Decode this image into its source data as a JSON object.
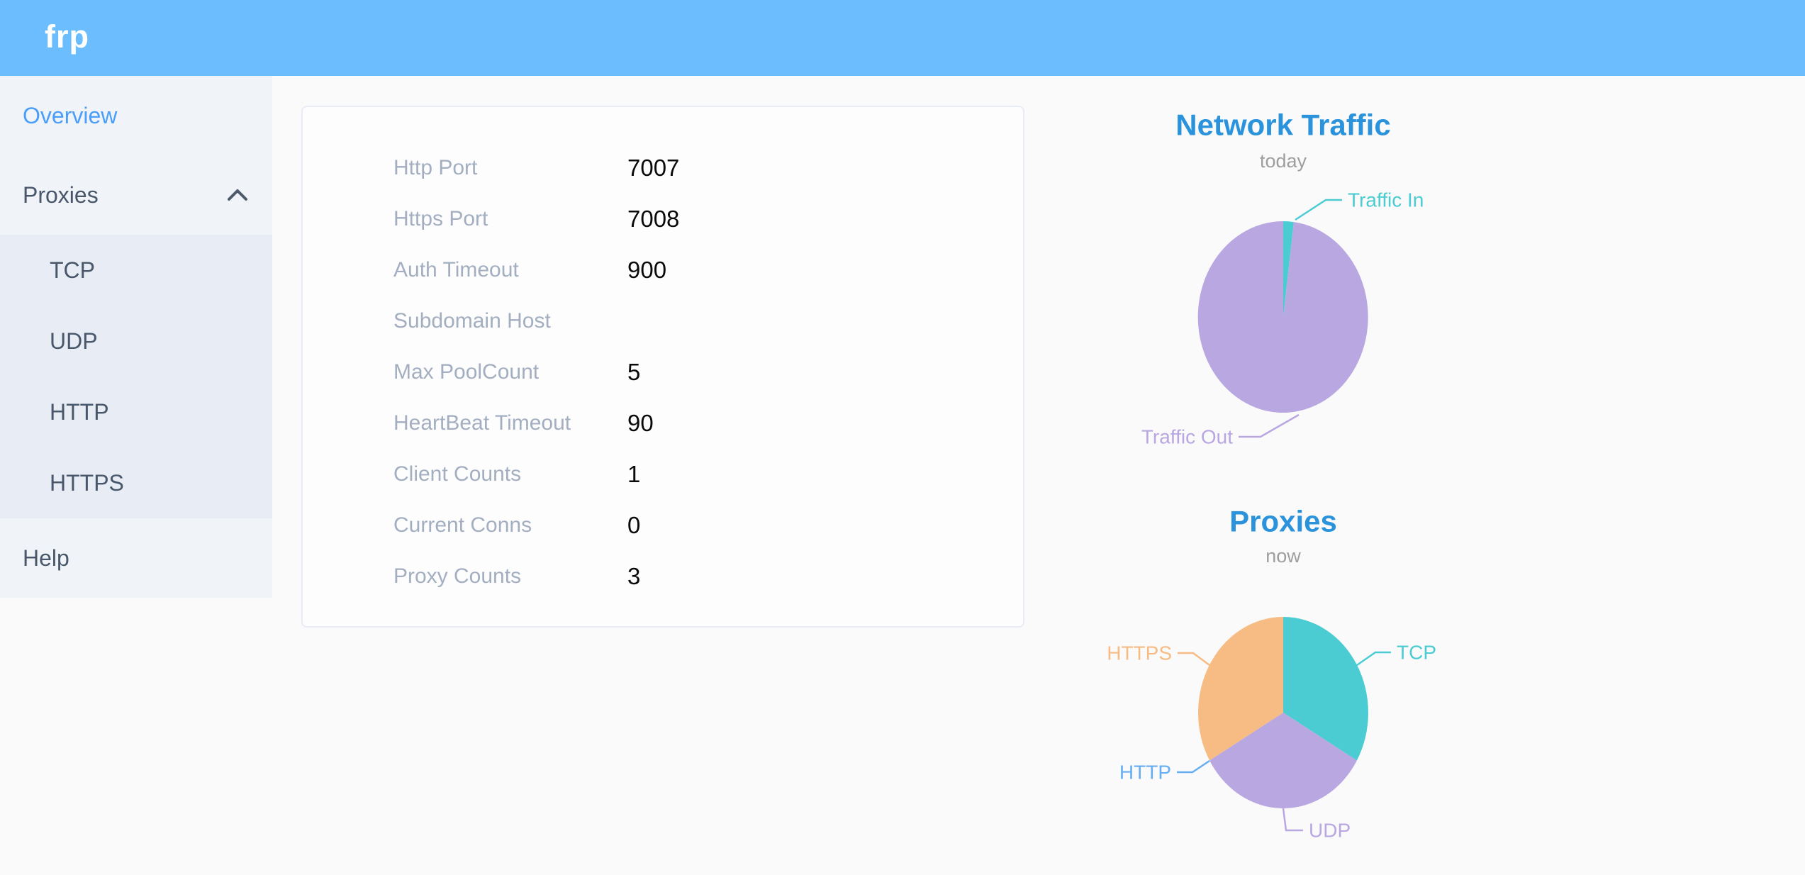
{
  "header": {
    "logo": "frp"
  },
  "sidebar": {
    "items": [
      {
        "label": "Overview",
        "active": true
      },
      {
        "label": "Proxies",
        "expanded": true,
        "children": [
          "TCP",
          "UDP",
          "HTTP",
          "HTTPS"
        ]
      },
      {
        "label": "Help"
      }
    ]
  },
  "overview_card": {
    "rows": [
      {
        "label": "Http Port",
        "value": "7007"
      },
      {
        "label": "Https Port",
        "value": "7008"
      },
      {
        "label": "Auth Timeout",
        "value": "900"
      },
      {
        "label": "Subdomain Host",
        "value": ""
      },
      {
        "label": "Max PoolCount",
        "value": "5"
      },
      {
        "label": "HeartBeat Timeout",
        "value": "90"
      },
      {
        "label": "Client Counts",
        "value": "1"
      },
      {
        "label": "Current Conns",
        "value": "0"
      },
      {
        "label": "Proxy Counts",
        "value": "3"
      }
    ]
  },
  "chart_data": [
    {
      "type": "pie",
      "title": "Network Traffic",
      "subtitle": "today",
      "legend_position": "outside-labels",
      "values_are_percent_estimates": true,
      "slices": [
        {
          "label": "Traffic In",
          "value": 2,
          "color": "#4bccd2"
        },
        {
          "label": "Traffic Out",
          "value": 98,
          "color": "#b9a7e2"
        }
      ]
    },
    {
      "type": "pie",
      "title": "Proxies",
      "subtitle": "now",
      "legend_position": "outside-labels",
      "values_are_counts": true,
      "slices": [
        {
          "label": "TCP",
          "value": 1,
          "color": "#4bccd2"
        },
        {
          "label": "UDP",
          "value": 1,
          "color": "#b9a7e2"
        },
        {
          "label": "HTTP",
          "value": 0,
          "color": "#66aef2"
        },
        {
          "label": "HTTPS",
          "value": 1,
          "color": "#f6bc84"
        }
      ]
    }
  ],
  "colors": {
    "header_bg": "#6cbdfe",
    "sidebar_bg": "#f0f3f8",
    "submenu_bg": "#e8ecf4",
    "menu_text": "#48576a",
    "active_menu_text": "#4a9ef8",
    "card_border": "#e9ecf7",
    "card_label_text": "#a3aec0",
    "card_value_text": "#0a0a0a",
    "chart_title": "#2b93dc",
    "chart_subtitle": "#9e9e9e"
  }
}
